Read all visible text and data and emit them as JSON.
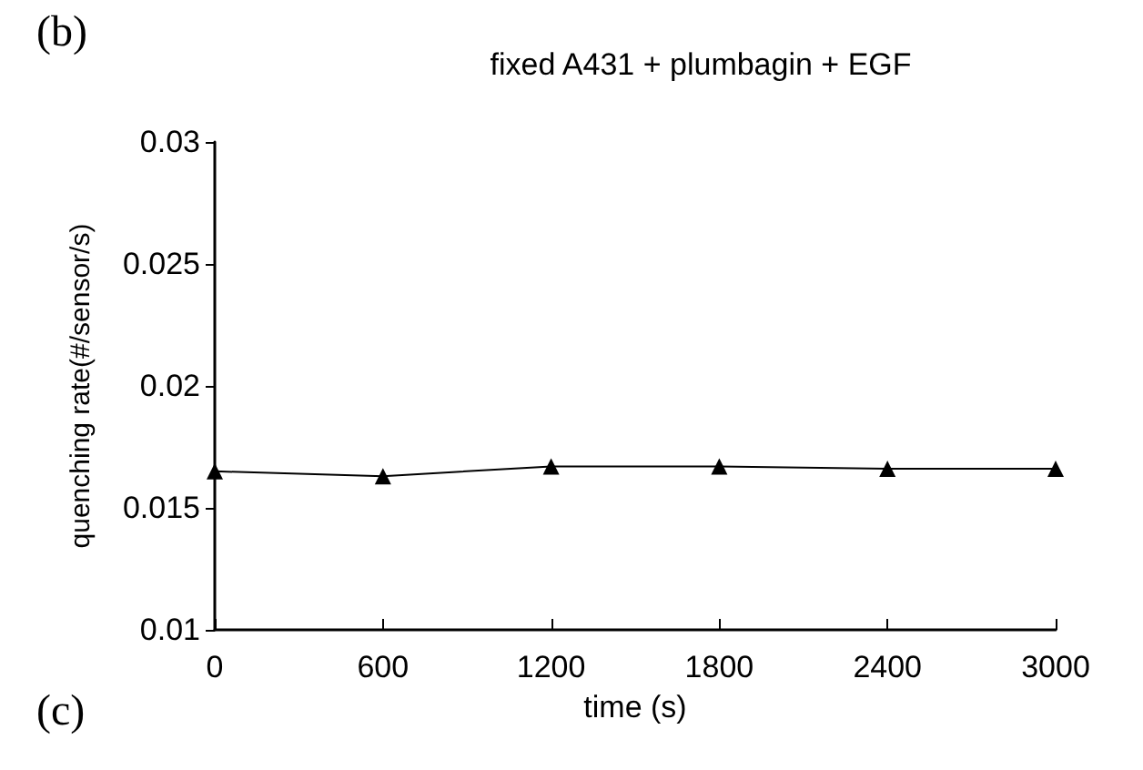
{
  "chart_data": {
    "type": "line",
    "title": "fixed A431 + plumbagin + EGF",
    "xlabel": "time (s)",
    "ylabel": "quenching rate(#/sensor/s)",
    "annotations": [
      "(b)",
      "(c)"
    ],
    "x": [
      0,
      600,
      1200,
      1800,
      2400,
      3000
    ],
    "series": [
      {
        "color": "#000000",
        "values": [
          0.0165,
          0.0163,
          0.0167,
          0.0167,
          0.0166,
          0.0166
        ]
      }
    ],
    "xlim": [
      0,
      3000
    ],
    "xticks": [
      0,
      600,
      1200,
      1800,
      2400,
      3000
    ],
    "ylim": [
      0.01,
      0.03
    ],
    "yticks": [
      0.01,
      0.015,
      0.02,
      0.025,
      0.03
    ],
    "grid": false,
    "marker": "triangle",
    "line_style": "solid"
  }
}
